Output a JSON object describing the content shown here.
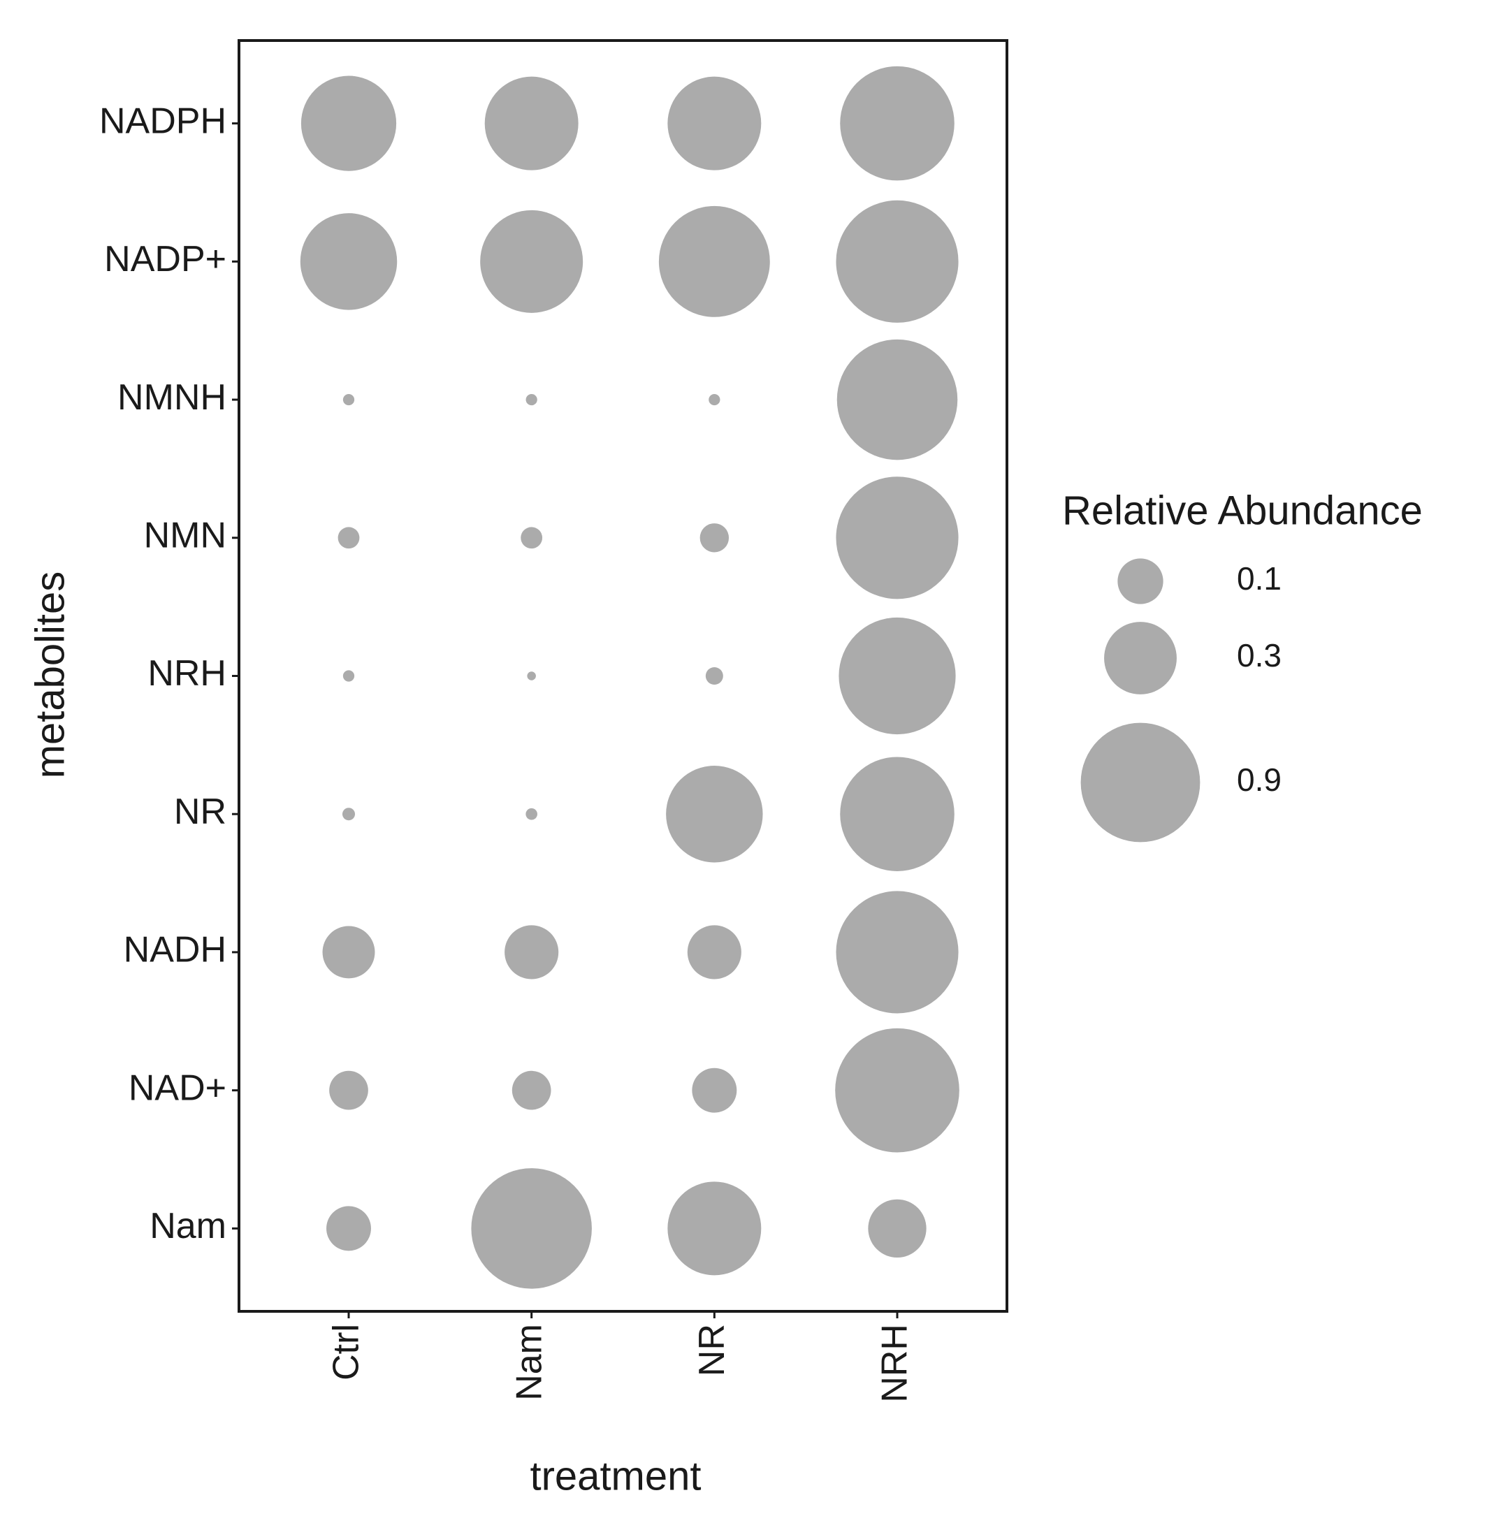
{
  "chart_data": {
    "type": "bubble",
    "x_label": "treatment",
    "y_label": "metabolites",
    "x_categories": [
      "Ctrl",
      "Nam",
      "NR",
      "NRH"
    ],
    "y_categories": [
      "NADPH",
      "NADP+",
      "NMNH",
      "NMN",
      "NRH",
      "NR",
      "NADH",
      "NAD+",
      "Nam"
    ],
    "values": [
      [
        0.55,
        0.53,
        0.53,
        0.82
      ],
      [
        0.57,
        0.65,
        0.77,
        0.95
      ],
      [
        0.0005,
        0.0005,
        0.0005,
        0.92
      ],
      [
        0.012,
        0.012,
        0.03,
        0.95
      ],
      [
        0.0005,
        0,
        0.0056,
        0.86
      ],
      [
        0.0011,
        0.0006,
        0.57,
        0.82
      ],
      [
        0.14,
        0.15,
        0.15,
        0.95
      ],
      [
        0.067,
        0.067,
        0.095,
        0.98
      ],
      [
        0.095,
        0.92,
        0.53,
        0.18
      ]
    ],
    "color": "#ababab",
    "size_legend": {
      "title": "Relative Abundance",
      "values": [
        0.1,
        0.3,
        0.9
      ]
    }
  }
}
